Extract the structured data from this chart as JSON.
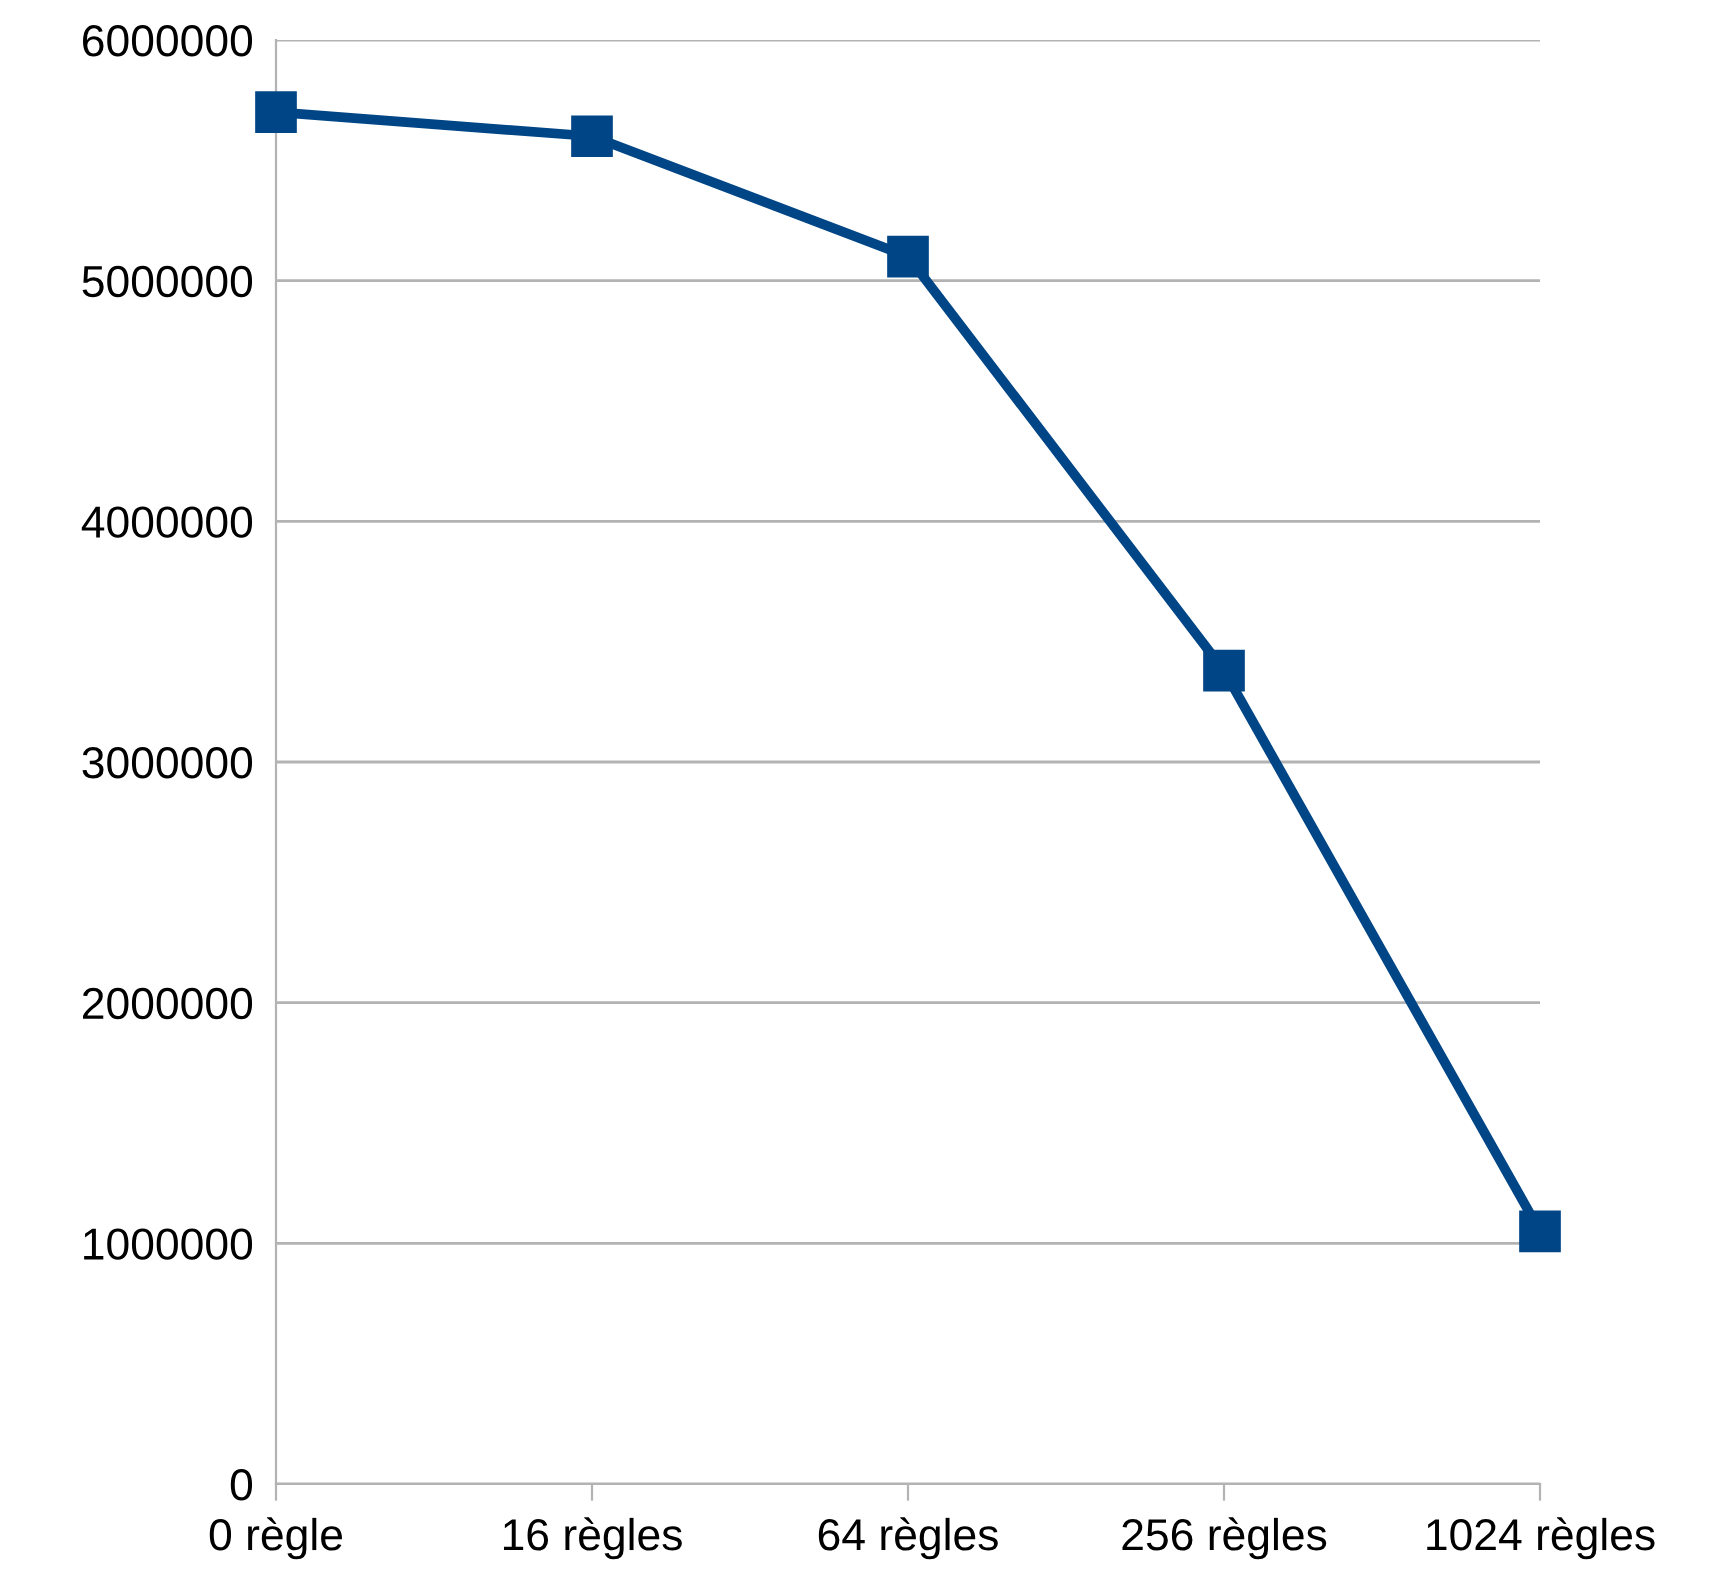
{
  "chart_data": {
    "type": "line",
    "categories": [
      "0 règle",
      "16 règles",
      "64 règles",
      "256 règles",
      "1024 règles"
    ],
    "series": [
      {
        "color": "#004586",
        "values": [
          5700000,
          5600000,
          5100000,
          3380000,
          1050000
        ]
      }
    ],
    "ylim": [
      0,
      6000000
    ],
    "yticks": [
      0,
      1000000,
      2000000,
      3000000,
      4000000,
      5000000,
      6000000
    ],
    "grid": "y",
    "marker": "square",
    "line_style": "solid"
  }
}
